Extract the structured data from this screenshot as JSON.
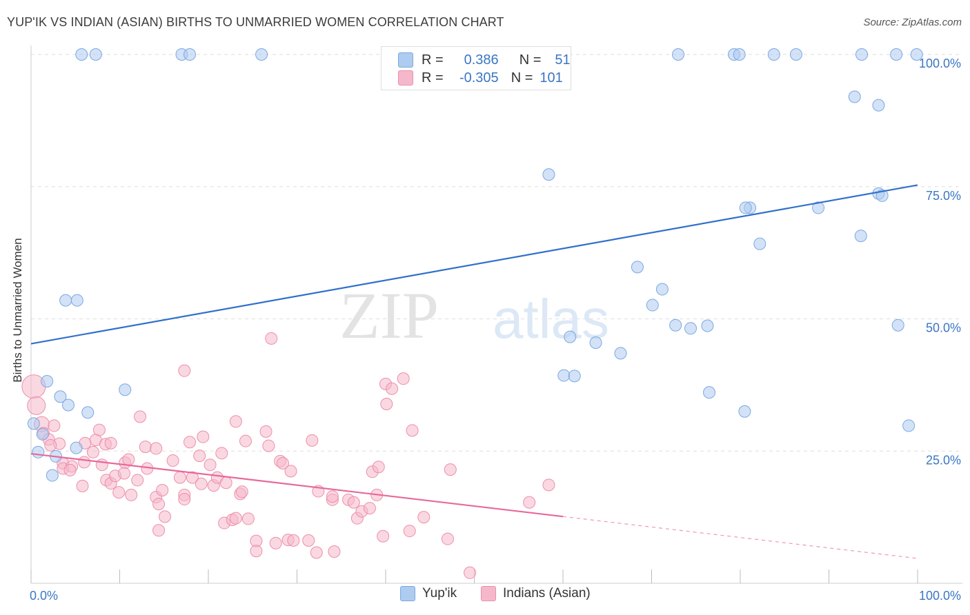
{
  "title": "YUP'IK VS INDIAN (ASIAN) BIRTHS TO UNMARRIED WOMEN CORRELATION CHART",
  "source": "Source: ZipAtlas.com",
  "watermark": {
    "zip": "ZIP",
    "atlas": "atlas"
  },
  "legend_top": [
    {
      "r_label": "R =",
      "r_value": "0.386",
      "n_label": "N =",
      "n_value": "51"
    },
    {
      "r_label": "R =",
      "r_value": "-0.305",
      "n_label": "N =",
      "n_value": "101"
    }
  ],
  "legend_bottom": [
    "Yup'ik",
    "Indians (Asian)"
  ],
  "colors": {
    "yupik_fill": "#aecbf0",
    "yupik_stroke": "#7aa8e0",
    "yupik_line": "#2f6fcc",
    "indian_fill": "#f5b8cb",
    "indian_stroke": "#ec8eab",
    "indian_line": "#e8689a",
    "tick_label": "#3a76c4",
    "grid": "#dddddd"
  },
  "chart_data": {
    "type": "scatter",
    "title": "YUP'IK VS INDIAN (ASIAN) BIRTHS TO UNMARRIED WOMEN CORRELATION CHART",
    "xlabel": "",
    "ylabel": "Births to Unmarried Women",
    "xlim": [
      0,
      100
    ],
    "ylim": [
      0,
      100
    ],
    "x_tick_labels": [
      "0.0%",
      "100.0%"
    ],
    "y_tick_labels": [
      "25.0%",
      "50.0%",
      "75.0%",
      "100.0%"
    ],
    "y_ticks": [
      25,
      50,
      75,
      100
    ],
    "grid": true,
    "legend_position": "top-center",
    "series": [
      {
        "name": "Yup'ik",
        "r": 0.386,
        "n": 51,
        "trend": {
          "x": [
            0,
            100
          ],
          "y": [
            45.3,
            75.3
          ],
          "dashed_from": null
        },
        "points": [
          [
            5.7,
            100
          ],
          [
            7.3,
            100
          ],
          [
            17.0,
            100
          ],
          [
            17.9,
            100
          ],
          [
            26.0,
            100
          ],
          [
            73.0,
            100
          ],
          [
            79.3,
            100
          ],
          [
            79.9,
            100
          ],
          [
            83.8,
            100
          ],
          [
            86.3,
            100
          ],
          [
            93.7,
            100
          ],
          [
            97.6,
            100
          ],
          [
            99.9,
            100
          ],
          [
            92.9,
            92
          ],
          [
            95.6,
            90.4
          ],
          [
            58.4,
            77.3
          ],
          [
            95.6,
            73.7
          ],
          [
            96.0,
            73.3
          ],
          [
            81.1,
            71.0
          ],
          [
            88.8,
            71.0
          ],
          [
            80.6,
            71.0
          ],
          [
            82.2,
            64.2
          ],
          [
            93.6,
            65.7
          ],
          [
            68.4,
            59.8
          ],
          [
            71.2,
            55.6
          ],
          [
            70.1,
            52.6
          ],
          [
            74.4,
            48.2
          ],
          [
            76.3,
            48.7
          ],
          [
            72.7,
            48.8
          ],
          [
            97.8,
            48.8
          ],
          [
            60.8,
            46.6
          ],
          [
            63.7,
            45.5
          ],
          [
            66.5,
            43.5
          ],
          [
            60.1,
            39.3
          ],
          [
            61.3,
            39.2
          ],
          [
            76.5,
            36.1
          ],
          [
            80.5,
            32.5
          ],
          [
            99.0,
            29.8
          ],
          [
            3.9,
            53.5
          ],
          [
            5.2,
            53.5
          ],
          [
            1.8,
            38.2
          ],
          [
            10.6,
            36.6
          ],
          [
            3.3,
            35.3
          ],
          [
            4.2,
            33.7
          ],
          [
            6.4,
            32.3
          ],
          [
            0.3,
            30.2
          ],
          [
            1.3,
            28.2
          ],
          [
            0.8,
            24.8
          ],
          [
            5.1,
            25.6
          ],
          [
            2.8,
            24.0
          ],
          [
            2.4,
            20.4
          ]
        ]
      },
      {
        "name": "Indians (Asian)",
        "r": -0.305,
        "n": 101,
        "trend": {
          "x": [
            0,
            100
          ],
          "y": [
            24.5,
            4.7
          ],
          "dashed_from": 60
        },
        "points": [
          [
            0.3,
            37.2
          ],
          [
            0.6,
            33.6
          ],
          [
            1.2,
            30.1
          ],
          [
            1.4,
            28.4
          ],
          [
            2.6,
            29.8
          ],
          [
            2.0,
            27.2
          ],
          [
            3.2,
            26.4
          ],
          [
            2.2,
            26.1
          ],
          [
            3.6,
            22.7
          ],
          [
            3.6,
            21.7
          ],
          [
            4.6,
            22.1
          ],
          [
            4.4,
            21.4
          ],
          [
            6.1,
            26.5
          ],
          [
            6.0,
            22.9
          ],
          [
            5.8,
            18.4
          ],
          [
            7.0,
            24.8
          ],
          [
            7.3,
            27.1
          ],
          [
            7.7,
            29.0
          ],
          [
            8.4,
            26.3
          ],
          [
            8.0,
            22.4
          ],
          [
            9.0,
            26.5
          ],
          [
            8.5,
            19.5
          ],
          [
            9.0,
            18.9
          ],
          [
            9.5,
            20.3
          ],
          [
            9.9,
            17.2
          ],
          [
            10.6,
            22.8
          ],
          [
            10.5,
            20.8
          ],
          [
            11.3,
            16.7
          ],
          [
            11.0,
            23.4
          ],
          [
            12.0,
            19.5
          ],
          [
            12.3,
            31.5
          ],
          [
            12.9,
            25.8
          ],
          [
            13.1,
            21.7
          ],
          [
            14.1,
            16.3
          ],
          [
            14.4,
            15.0
          ],
          [
            14.1,
            25.5
          ],
          [
            14.8,
            17.6
          ],
          [
            14.4,
            10.0
          ],
          [
            15.1,
            12.6
          ],
          [
            16.0,
            23.2
          ],
          [
            16.8,
            20.0
          ],
          [
            17.3,
            16.7
          ],
          [
            17.3,
            15.9
          ],
          [
            17.3,
            40.2
          ],
          [
            17.9,
            26.7
          ],
          [
            18.2,
            20.0
          ],
          [
            19.4,
            27.7
          ],
          [
            19.0,
            24.1
          ],
          [
            19.2,
            18.8
          ],
          [
            20.2,
            22.4
          ],
          [
            20.6,
            18.5
          ],
          [
            21.0,
            20.0
          ],
          [
            21.5,
            24.6
          ],
          [
            21.8,
            11.4
          ],
          [
            22.0,
            19.0
          ],
          [
            22.7,
            12.0
          ],
          [
            23.1,
            12.3
          ],
          [
            23.6,
            16.9
          ],
          [
            23.1,
            30.6
          ],
          [
            23.8,
            17.3
          ],
          [
            24.2,
            26.9
          ],
          [
            24.5,
            12.2
          ],
          [
            25.4,
            8.0
          ],
          [
            25.4,
            6.1
          ],
          [
            26.5,
            28.7
          ],
          [
            26.8,
            26.0
          ],
          [
            27.6,
            7.6
          ],
          [
            28.1,
            23.1
          ],
          [
            28.4,
            22.7
          ],
          [
            27.1,
            46.3
          ],
          [
            29.0,
            8.2
          ],
          [
            29.6,
            8.1
          ],
          [
            29.3,
            21.2
          ],
          [
            31.3,
            8.1
          ],
          [
            31.7,
            27.0
          ],
          [
            32.2,
            5.8
          ],
          [
            32.4,
            17.4
          ],
          [
            34.0,
            15.8
          ],
          [
            34.0,
            16.4
          ],
          [
            34.2,
            6.0
          ],
          [
            35.8,
            15.8
          ],
          [
            36.4,
            15.3
          ],
          [
            36.8,
            12.3
          ],
          [
            37.3,
            13.6
          ],
          [
            38.2,
            14.2
          ],
          [
            38.5,
            21.1
          ],
          [
            39.2,
            22.0
          ],
          [
            39.0,
            16.7
          ],
          [
            40.0,
            37.7
          ],
          [
            40.1,
            33.9
          ],
          [
            40.7,
            36.8
          ],
          [
            39.7,
            8.9
          ],
          [
            42.0,
            38.7
          ],
          [
            42.7,
            9.9
          ],
          [
            43.0,
            28.9
          ],
          [
            44.3,
            12.5
          ],
          [
            47.0,
            8.4
          ],
          [
            47.3,
            21.5
          ],
          [
            49.5,
            2.0
          ],
          [
            56.2,
            15.3
          ],
          [
            58.4,
            18.6
          ]
        ]
      }
    ]
  }
}
